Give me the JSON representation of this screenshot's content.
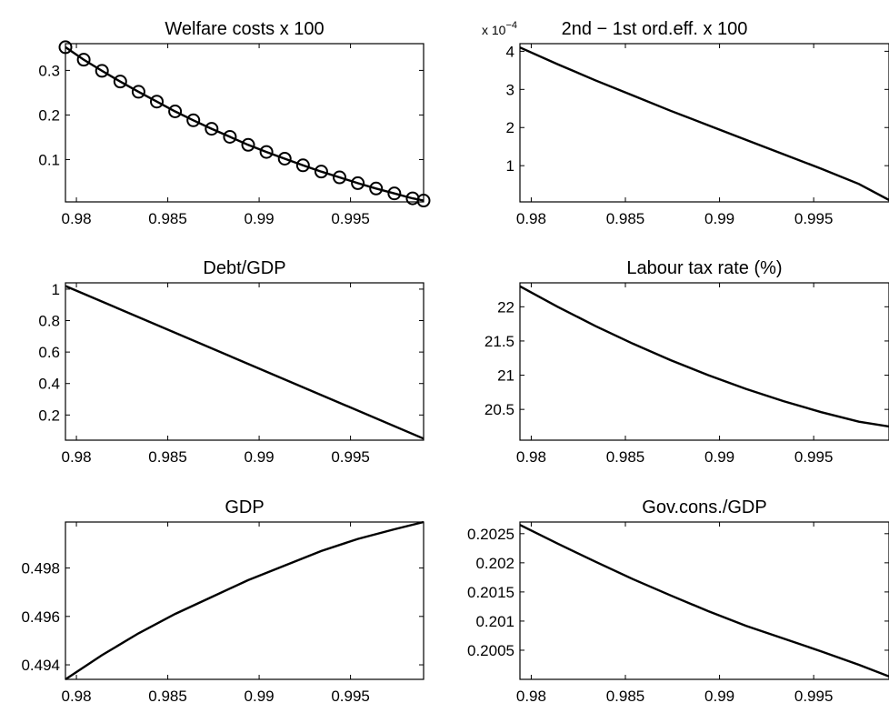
{
  "chart_data": [
    {
      "type": "line",
      "title": "Welfare costs x 100",
      "xlim": [
        0.9794,
        0.999
      ],
      "ylim": [
        0.005,
        0.36
      ],
      "xticks": [
        0.98,
        0.985,
        0.99,
        0.995
      ],
      "xtick_labels": [
        "0.98",
        "0.985",
        "0.99",
        "0.995"
      ],
      "yticks": [
        0.1,
        0.2,
        0.3
      ],
      "ytick_labels": [
        "0.1",
        "0.2",
        "0.3"
      ],
      "grid": false,
      "series": [
        {
          "marker": "circle",
          "x": [
            0.9794,
            0.9804,
            0.9814,
            0.9824,
            0.9834,
            0.9844,
            0.9854,
            0.9864,
            0.9874,
            0.9884,
            0.9894,
            0.9904,
            0.9914,
            0.9924,
            0.9934,
            0.9944,
            0.9954,
            0.9964,
            0.9974,
            0.9984,
            0.999
          ],
          "y": [
            0.352,
            0.324,
            0.299,
            0.275,
            0.252,
            0.23,
            0.208,
            0.188,
            0.169,
            0.151,
            0.133,
            0.117,
            0.102,
            0.087,
            0.073,
            0.06,
            0.047,
            0.035,
            0.024,
            0.013,
            0.008
          ]
        }
      ]
    },
    {
      "type": "line",
      "title": "2nd − 1st ord.eff. x 100",
      "y_exponent_label": {
        "prefix": "x 10",
        "superscript": "−4"
      },
      "xlim": [
        0.9794,
        0.999
      ],
      "ylim": [
        0.05,
        4.2
      ],
      "xticks": [
        0.98,
        0.985,
        0.99,
        0.995
      ],
      "xtick_labels": [
        "0.98",
        "0.985",
        "0.99",
        "0.995"
      ],
      "yticks": [
        1,
        2,
        3,
        4
      ],
      "ytick_labels": [
        "1",
        "2",
        "3",
        "4"
      ],
      "grid": false,
      "series": [
        {
          "x": [
            0.9794,
            0.9814,
            0.9834,
            0.9854,
            0.9874,
            0.9894,
            0.9914,
            0.9934,
            0.9954,
            0.9974,
            0.999
          ],
          "y": [
            4.1,
            3.66,
            3.24,
            2.84,
            2.44,
            2.06,
            1.68,
            1.3,
            0.92,
            0.52,
            0.1
          ]
        }
      ]
    },
    {
      "type": "line",
      "title": "Debt/GDP",
      "xlim": [
        0.9794,
        0.999
      ],
      "ylim": [
        0.04,
        1.04
      ],
      "xticks": [
        0.98,
        0.985,
        0.99,
        0.995
      ],
      "xtick_labels": [
        "0.98",
        "0.985",
        "0.99",
        "0.995"
      ],
      "yticks": [
        0.2,
        0.4,
        0.6,
        0.8,
        1
      ],
      "ytick_labels": [
        "0.2",
        "0.4",
        "0.6",
        "0.8",
        "1"
      ],
      "grid": false,
      "series": [
        {
          "x": [
            0.9794,
            0.999
          ],
          "y": [
            1.02,
            0.05
          ]
        }
      ]
    },
    {
      "type": "line",
      "title": "Labour tax rate (%)",
      "xlim": [
        0.9794,
        0.999
      ],
      "ylim": [
        20.05,
        22.35
      ],
      "xticks": [
        0.98,
        0.985,
        0.99,
        0.995
      ],
      "xtick_labels": [
        "0.98",
        "0.985",
        "0.99",
        "0.995"
      ],
      "yticks": [
        20.5,
        21,
        21.5,
        22
      ],
      "ytick_labels": [
        "20.5",
        "21",
        "21.5",
        "22"
      ],
      "grid": false,
      "series": [
        {
          "x": [
            0.9794,
            0.9814,
            0.9834,
            0.9854,
            0.9874,
            0.9894,
            0.9914,
            0.9934,
            0.9954,
            0.9974,
            0.999
          ],
          "y": [
            22.3,
            22.0,
            21.72,
            21.46,
            21.22,
            21.0,
            20.8,
            20.62,
            20.46,
            20.32,
            20.25
          ]
        }
      ]
    },
    {
      "type": "line",
      "title": "GDP",
      "xlim": [
        0.9794,
        0.999
      ],
      "ylim": [
        0.4934,
        0.4999
      ],
      "xticks": [
        0.98,
        0.985,
        0.99,
        0.995
      ],
      "xtick_labels": [
        "0.98",
        "0.985",
        "0.99",
        "0.995"
      ],
      "yticks": [
        0.494,
        0.496,
        0.498
      ],
      "ytick_labels": [
        "0.494",
        "0.496",
        "0.498"
      ],
      "grid": false,
      "series": [
        {
          "x": [
            0.9794,
            0.9814,
            0.9834,
            0.9854,
            0.9874,
            0.9894,
            0.9914,
            0.9934,
            0.9954,
            0.9974,
            0.999
          ],
          "y": [
            0.4934,
            0.4944,
            0.4953,
            0.4961,
            0.4968,
            0.4975,
            0.4981,
            0.4987,
            0.4992,
            0.4996,
            0.4999
          ]
        }
      ]
    },
    {
      "type": "line",
      "title": "Gov.cons./GDP",
      "xlim": [
        0.9794,
        0.999
      ],
      "ylim": [
        0.2,
        0.2027
      ],
      "xticks": [
        0.98,
        0.985,
        0.99,
        0.995
      ],
      "xtick_labels": [
        "0.98",
        "0.985",
        "0.99",
        "0.995"
      ],
      "yticks": [
        0.2005,
        0.201,
        0.2015,
        0.202,
        0.2025
      ],
      "ytick_labels": [
        "0.2005",
        "0.201",
        "0.2015",
        "0.202",
        "0.2025"
      ],
      "grid": false,
      "series": [
        {
          "x": [
            0.9794,
            0.9814,
            0.9834,
            0.9854,
            0.9874,
            0.9894,
            0.9914,
            0.9934,
            0.9954,
            0.9974,
            0.999
          ],
          "y": [
            0.20265,
            0.20233,
            0.20202,
            0.20172,
            0.20144,
            0.20117,
            0.20092,
            0.2007,
            0.20048,
            0.20025,
            0.20005
          ]
        }
      ]
    }
  ]
}
